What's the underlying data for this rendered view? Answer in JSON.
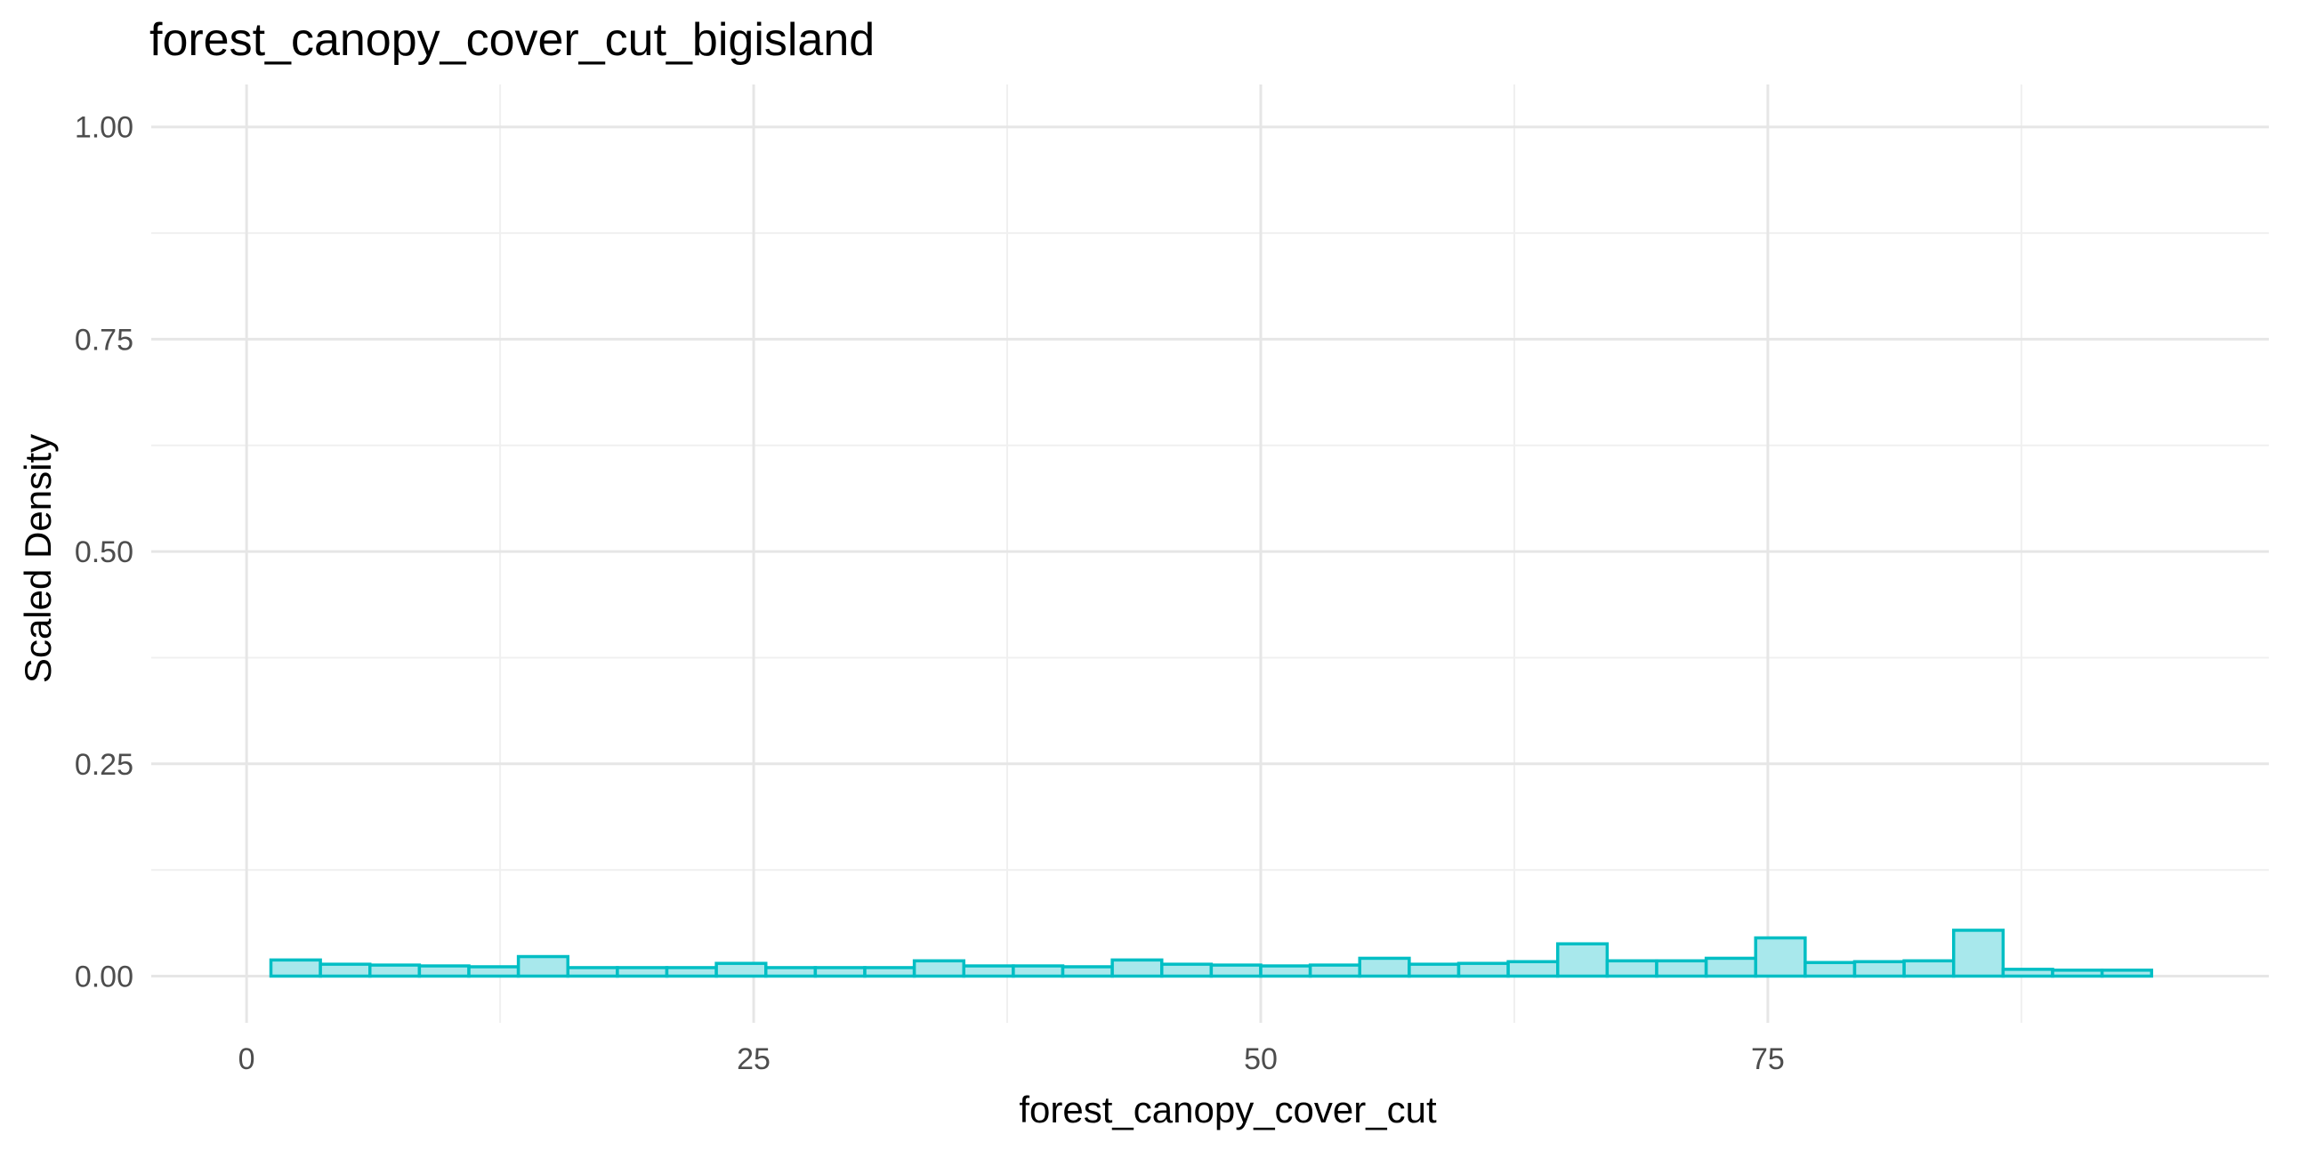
{
  "chart_data": {
    "type": "bar",
    "title": "forest_canopy_cover_cut_bigisland",
    "xlabel": "forest_canopy_cover_cut",
    "ylabel": "Scaled Density",
    "xlim": [
      -4.7,
      99.7
    ],
    "ylim": [
      -0.055,
      1.05
    ],
    "x_ticks": [
      0,
      25,
      50,
      75
    ],
    "x_tick_labels": [
      "0",
      "25",
      "50",
      "75"
    ],
    "y_ticks": [
      0,
      0.25,
      0.5,
      0.75,
      1.0
    ],
    "y_tick_labels": [
      "0.00",
      "0.25",
      "0.50",
      "0.75",
      "1.00"
    ],
    "grid": true,
    "colors": {
      "fill": "#a8e8ec",
      "outline": "#00bec4"
    },
    "bin_width": 2.44,
    "bin_starts": [
      1.2,
      3.64,
      6.08,
      8.52,
      10.96,
      13.4,
      15.84,
      18.28,
      20.72,
      23.16,
      25.6,
      28.04,
      30.48,
      32.92,
      35.36,
      37.8,
      40.24,
      42.68,
      45.12,
      47.56,
      50.0,
      52.44,
      54.88,
      57.32,
      59.76,
      62.2,
      64.64,
      67.08,
      69.52,
      71.96,
      74.4,
      76.84,
      79.28,
      81.72,
      84.16,
      86.6,
      89.04,
      91.48
    ],
    "values": [
      0.019,
      0.014,
      0.013,
      0.012,
      0.011,
      0.023,
      0.01,
      0.01,
      0.01,
      0.015,
      0.01,
      0.01,
      0.01,
      0.018,
      0.012,
      0.012,
      0.011,
      0.019,
      0.014,
      0.013,
      0.012,
      0.013,
      0.021,
      0.014,
      0.015,
      0.017,
      0.038,
      0.018,
      0.018,
      0.021,
      0.045,
      0.016,
      0.017,
      0.018,
      0.054,
      0.008,
      0.007,
      0.007
    ]
  }
}
